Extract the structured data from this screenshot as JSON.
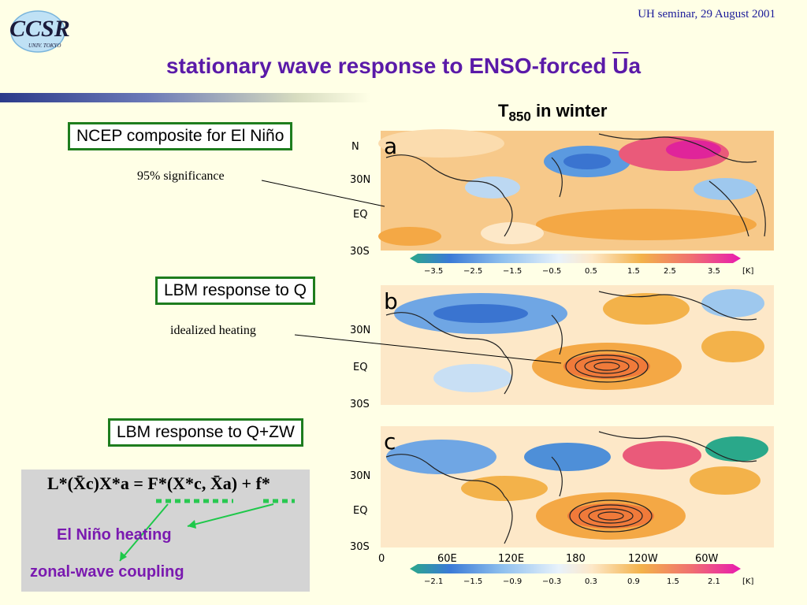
{
  "header": {
    "logo_text": "CCSR",
    "logo_subtext": "UNIV. TOKYO",
    "seminar": "UH seminar, 29 August 2001"
  },
  "title": {
    "prefix": "stationary wave response to ENSO-forced ",
    "ubar": "U",
    "suffix": "a"
  },
  "figure_title": {
    "main": "T",
    "sub": "850",
    "rest": " in winter"
  },
  "panels": [
    {
      "letter": "a",
      "box_label": "NCEP composite for El Niño",
      "note": "95% significance",
      "colorbar_labels": [
        "−3.5",
        "−2.5",
        "−1.5",
        "−0.5",
        "0.5",
        "1.5",
        "2.5",
        "3.5",
        "[K]"
      ]
    },
    {
      "letter": "b",
      "box_label": "LBM response to Q",
      "note": "idealized heating"
    },
    {
      "letter": "c",
      "box_label": "LBM response to Q+ZW",
      "colorbar_labels": [
        "−2.1",
        "−1.5",
        "−0.9",
        "−0.3",
        "0.3",
        "0.9",
        "1.5",
        "2.1",
        "[K]"
      ]
    }
  ],
  "lat_labels": [
    "N",
    "30N",
    "EQ",
    "30S"
  ],
  "lon_labels": [
    "0",
    "60E",
    "120E",
    "180",
    "120W",
    "60W"
  ],
  "equation_label": "L*(X̄c)X*a = F*(X*c, X̄a) + f*",
  "labels": {
    "heating": "El Niño heating",
    "zonal": "zonal-wave coupling"
  },
  "colors": {
    "title": "#5a1aa8",
    "box_border": "#1e7d1e",
    "arrow": "#1ec84a",
    "dotted": "#28c850",
    "warm": "#f0a040",
    "cool": "#4f8fd8"
  }
}
